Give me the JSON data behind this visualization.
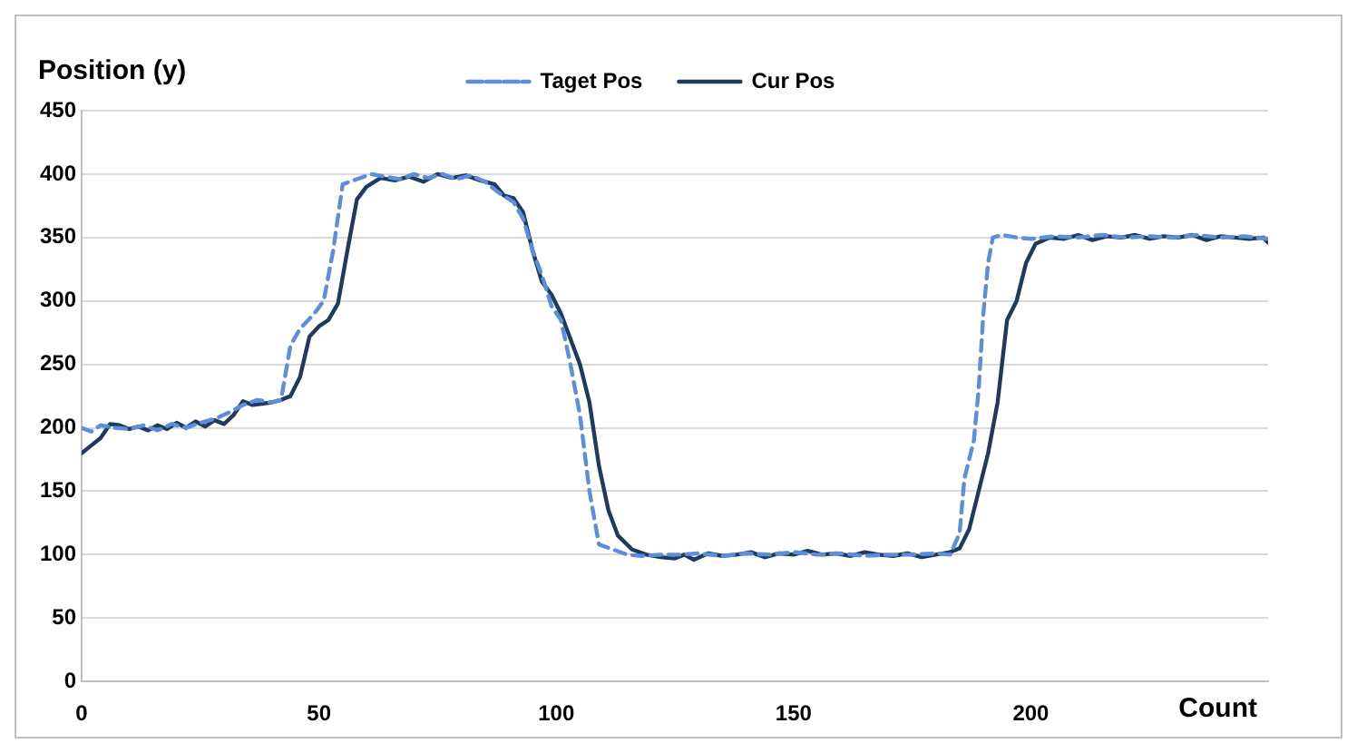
{
  "chart_data": {
    "type": "line",
    "ylabel": "Position (y)",
    "xlabel": "Count",
    "xlim": [
      0,
      250
    ],
    "xticks": [
      0,
      50,
      100,
      150,
      200
    ],
    "ylim": [
      0,
      450
    ],
    "yticks": [
      0,
      50,
      100,
      150,
      200,
      250,
      300,
      350,
      400,
      450
    ],
    "grid": "y",
    "legend": "top",
    "marker": "none",
    "series": [
      {
        "name": "Taget Pos",
        "color": "#5b8fd9",
        "line_style": "dashed",
        "x": [
          0,
          2,
          4,
          7,
          10,
          13,
          16,
          19,
          22,
          25,
          28,
          31,
          34,
          37,
          40,
          42,
          44,
          46,
          49,
          51,
          53,
          55,
          58,
          61,
          64,
          67,
          70,
          73,
          76,
          79,
          82,
          85,
          88,
          91,
          93,
          95,
          97,
          99,
          101,
          103,
          105,
          107,
          109,
          112,
          115,
          118,
          122,
          126,
          130,
          135,
          140,
          145,
          150,
          155,
          160,
          165,
          170,
          175,
          180,
          183,
          185,
          186,
          188,
          189,
          190,
          191,
          192,
          194,
          197,
          200,
          205,
          210,
          215,
          220,
          225,
          230,
          235,
          240,
          245,
          250
        ],
        "values": [
          200,
          197,
          202,
          200,
          199,
          202,
          198,
          203,
          200,
          204,
          207,
          212,
          218,
          222,
          220,
          222,
          265,
          278,
          290,
          300,
          340,
          392,
          396,
          400,
          398,
          396,
          400,
          397,
          400,
          396,
          399,
          394,
          385,
          378,
          365,
          340,
          320,
          296,
          285,
          250,
          210,
          150,
          108,
          104,
          100,
          99,
          100,
          100,
          101,
          99,
          101,
          100,
          102,
          100,
          101,
          99,
          100,
          100,
          101,
          100,
          117,
          160,
          190,
          230,
          290,
          330,
          350,
          352,
          350,
          349,
          351,
          350,
          352,
          350,
          351,
          350,
          352,
          350,
          351,
          349
        ]
      },
      {
        "name": "Cur Pos",
        "color": "#1f3a5f",
        "line_style": "solid",
        "x": [
          0,
          2,
          4,
          6,
          8,
          10,
          12,
          14,
          16,
          18,
          20,
          22,
          24,
          26,
          28,
          30,
          32,
          34,
          36,
          38,
          40,
          42,
          44,
          46,
          48,
          50,
          52,
          54,
          56,
          58,
          60,
          63,
          66,
          69,
          72,
          75,
          78,
          81,
          84,
          87,
          89,
          91,
          93,
          95,
          97,
          99,
          101,
          103,
          105,
          107,
          109,
          111,
          113,
          116,
          119,
          122,
          125,
          127,
          129,
          132,
          135,
          138,
          141,
          144,
          147,
          150,
          153,
          156,
          159,
          162,
          165,
          168,
          171,
          174,
          177,
          180,
          183,
          185,
          187,
          189,
          191,
          193,
          195,
          197,
          199,
          201,
          204,
          207,
          210,
          213,
          216,
          219,
          222,
          225,
          228,
          231,
          234,
          237,
          240,
          243,
          246,
          249,
          250
        ],
        "values": [
          180,
          186,
          192,
          203,
          202,
          199,
          201,
          198,
          202,
          199,
          204,
          200,
          205,
          201,
          206,
          203,
          210,
          221,
          218,
          219,
          220,
          222,
          225,
          240,
          272,
          280,
          285,
          298,
          340,
          380,
          390,
          397,
          395,
          398,
          394,
          400,
          397,
          399,
          395,
          392,
          383,
          381,
          370,
          340,
          315,
          305,
          290,
          270,
          250,
          220,
          170,
          135,
          115,
          104,
          100,
          98,
          97,
          100,
          96,
          101,
          99,
          100,
          102,
          98,
          101,
          100,
          103,
          100,
          101,
          99,
          102,
          100,
          99,
          101,
          98,
          100,
          102,
          105,
          120,
          150,
          180,
          220,
          285,
          300,
          330,
          345,
          350,
          349,
          352,
          348,
          351,
          350,
          352,
          349,
          351,
          350,
          352,
          348,
          351,
          350,
          349,
          350,
          346
        ]
      }
    ]
  }
}
